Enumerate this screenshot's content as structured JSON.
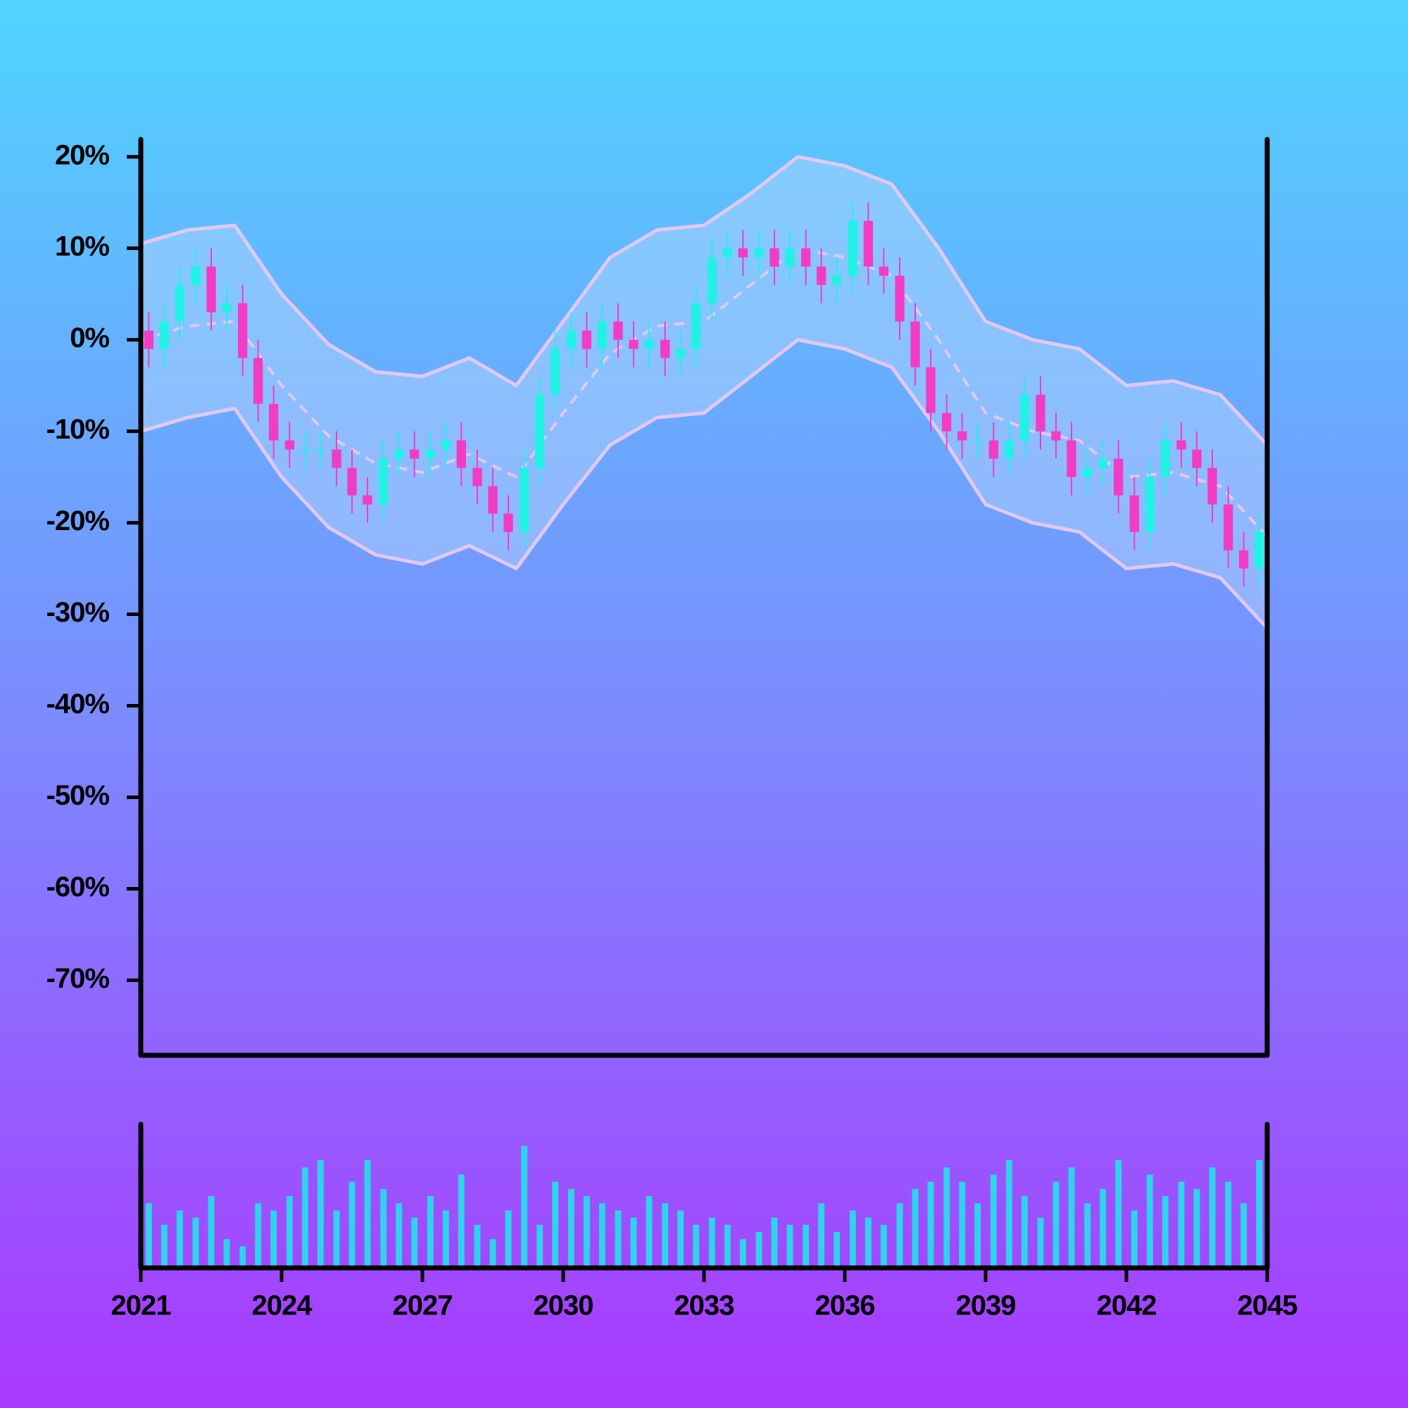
{
  "chart_data": {
    "type": "candlestick",
    "x": [
      2021.17,
      2021.5,
      2021.83,
      2022.17,
      2022.5,
      2022.83,
      2023.17,
      2023.5,
      2023.83,
      2024.17,
      2024.5,
      2024.83,
      2025.17,
      2025.5,
      2025.83,
      2026.17,
      2026.5,
      2026.83,
      2027.17,
      2027.5,
      2027.83,
      2028.17,
      2028.5,
      2028.83,
      2029.17,
      2029.5,
      2029.83,
      2030.17,
      2030.5,
      2030.83,
      2031.17,
      2031.5,
      2031.83,
      2032.17,
      2032.5,
      2032.83,
      2033.17,
      2033.5,
      2033.83,
      2034.17,
      2034.5,
      2034.83,
      2035.17,
      2035.5,
      2035.83,
      2036.17,
      2036.5,
      2036.83,
      2037.17,
      2037.5,
      2037.83,
      2038.17,
      2038.5,
      2038.83,
      2039.17,
      2039.5,
      2039.83,
      2040.17,
      2040.5,
      2040.83,
      2041.17,
      2041.5,
      2041.83,
      2042.17,
      2042.5,
      2042.83,
      2043.17,
      2043.5,
      2043.83,
      2044.17,
      2044.5,
      2044.83
    ],
    "open": [
      1,
      -1,
      2,
      6,
      8,
      3,
      4,
      -2,
      -7,
      -11,
      -12,
      -12,
      -12,
      -14,
      -17,
      -18,
      -13,
      -12,
      -13,
      -12,
      -11,
      -14,
      -16,
      -19,
      -21,
      -14,
      -6,
      -1,
      1,
      -1,
      2,
      0,
      -1,
      0,
      -2,
      -1,
      4,
      9,
      10,
      9,
      10,
      8,
      10,
      8,
      6,
      7,
      13,
      8,
      7,
      2,
      -3,
      -8,
      -10,
      -11,
      -11,
      -13,
      -11,
      -6,
      -10,
      -11,
      -15,
      -14,
      -13,
      -17,
      -21,
      -15,
      -11,
      -12,
      -14,
      -18,
      -23,
      -25
    ],
    "high": [
      3,
      4,
      8,
      10,
      10,
      6,
      6,
      0,
      -5,
      -9,
      -10,
      -10,
      -10,
      -12,
      -15,
      -11,
      -10,
      -10,
      -10,
      -9,
      -9,
      -12,
      -14,
      -17,
      -12,
      -4,
      1,
      3,
      3,
      4,
      4,
      2,
      2,
      2,
      1,
      6,
      11,
      12,
      12,
      12,
      12,
      12,
      12,
      10,
      9,
      15,
      15,
      10,
      9,
      4,
      -1,
      -6,
      -8,
      -9,
      -9,
      -9,
      -4,
      -4,
      -8,
      -9,
      -12,
      -11,
      -11,
      -15,
      -13,
      -9,
      -9,
      -10,
      -12,
      -16,
      -21,
      -19
    ],
    "low": [
      -3,
      -3,
      0,
      4,
      1,
      1,
      -4,
      -9,
      -13,
      -14,
      -14,
      -14,
      -16,
      -19,
      -20,
      -20,
      -15,
      -15,
      -15,
      -14,
      -16,
      -18,
      -21,
      -23,
      -23,
      -16,
      -8,
      -3,
      -3,
      -3,
      -2,
      -3,
      -3,
      -4,
      -4,
      -3,
      2,
      7,
      7,
      7,
      6,
      6,
      6,
      4,
      4,
      5,
      6,
      5,
      0,
      -5,
      -10,
      -12,
      -13,
      -13,
      -15,
      -15,
      -13,
      -12,
      -13,
      -17,
      -17,
      -16,
      -19,
      -23,
      -23,
      -17,
      -14,
      -16,
      -20,
      -25,
      -27,
      -27
    ],
    "close": [
      -1,
      2,
      6,
      8,
      3,
      4,
      -2,
      -7,
      -11,
      -12,
      -12,
      -12,
      -14,
      -17,
      -18,
      -13,
      -12,
      -13,
      -12,
      -11,
      -14,
      -16,
      -19,
      -21,
      -14,
      -6,
      -1,
      1,
      -1,
      2,
      0,
      -1,
      0,
      -2,
      -1,
      4,
      9,
      10,
      9,
      10,
      8,
      10,
      8,
      6,
      7,
      13,
      8,
      7,
      2,
      -3,
      -8,
      -10,
      -11,
      -11,
      -13,
      -11,
      -6,
      -10,
      -11,
      -15,
      -14,
      -13,
      -17,
      -21,
      -15,
      -11,
      -12,
      -14,
      -18,
      -23,
      -25,
      -21
    ],
    "volume": [
      45,
      30,
      40,
      35,
      50,
      20,
      15,
      45,
      40,
      50,
      70,
      75,
      40,
      60,
      75,
      55,
      45,
      35,
      50,
      40,
      65,
      30,
      20,
      40,
      85,
      30,
      60,
      55,
      50,
      45,
      40,
      35,
      50,
      45,
      40,
      30,
      35,
      30,
      20,
      25,
      35,
      30,
      30,
      45,
      25,
      40,
      35,
      30,
      45,
      55,
      60,
      70,
      60,
      45,
      65,
      75,
      50,
      35,
      60,
      70,
      45,
      55,
      75,
      40,
      65,
      50,
      60,
      55,
      70,
      60,
      45,
      75
    ],
    "volume_ylim": [
      0,
      100
    ],
    "bands": {
      "x": [
        2021,
        2022,
        2023,
        2024,
        2025,
        2026,
        2027,
        2028,
        2029,
        2030,
        2031,
        2032,
        2033,
        2034,
        2035,
        2036,
        2037,
        2038,
        2039,
        2040,
        2041,
        2042,
        2043,
        2044,
        2045
      ],
      "middle": [
        0,
        1.5,
        2,
        -5,
        -10.5,
        -13.5,
        -14.5,
        -12.5,
        -15,
        -8,
        -1.5,
        1.5,
        2,
        6,
        10,
        9,
        7,
        0,
        -8,
        -10,
        -11,
        -15,
        -14.5,
        -16,
        -21.5
      ],
      "upper": [
        10.5,
        12,
        12.5,
        5,
        -0.5,
        -3.5,
        -4,
        -2,
        -5,
        2,
        9,
        12,
        12.5,
        16,
        20,
        19,
        17,
        10,
        2,
        0,
        -1,
        -5,
        -4.5,
        -6,
        -11.5
      ],
      "lower": [
        -10,
        -8.5,
        -7.5,
        -15,
        -20.5,
        -23.5,
        -24.5,
        -22.5,
        -25,
        -18,
        -11.5,
        -8.5,
        -8,
        -4,
        0,
        -1,
        -3,
        -10,
        -18,
        -20,
        -21,
        -25,
        -24.5,
        -26,
        -31.5
      ]
    },
    "up_color": "#22f2e6",
    "down_color": "#f23cc4",
    "volume_color": "#2ed4ec",
    "band_line_color": "#e2c8f2",
    "band_fill_color": "#b8d8ff",
    "xlim": [
      2021,
      2045
    ],
    "xticks": [
      2021,
      2024,
      2027,
      2030,
      2033,
      2036,
      2039,
      2042,
      2045
    ],
    "ylim": [
      -78.2,
      21.9
    ],
    "yticks": [
      {
        "value": 20,
        "label": "20%"
      },
      {
        "value": 10,
        "label": "10%"
      },
      {
        "value": 0,
        "label": "0%"
      },
      {
        "value": -10,
        "label": "-10%"
      },
      {
        "value": -20,
        "label": "-20%"
      },
      {
        "value": -30,
        "label": "-30%"
      },
      {
        "value": -40,
        "label": "-40%"
      },
      {
        "value": -50,
        "label": "-50%"
      },
      {
        "value": -60,
        "label": "-60%"
      },
      {
        "value": -70,
        "label": "-70%"
      }
    ]
  }
}
